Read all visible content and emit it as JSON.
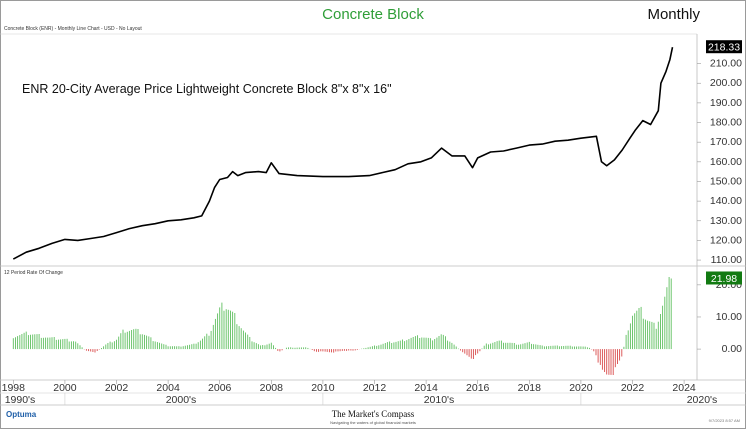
{
  "header": {
    "title": "Concrete Block",
    "period": "Monthly",
    "caption": "Concrete Block (ENR) - Monthly Line Chart - USD - No Layout"
  },
  "footer": {
    "logo": "Optuma",
    "brand": "The Market's Compass",
    "tagline": "Navigating the waters of global financial markets",
    "date": "9/7/2023 8:57 AM"
  },
  "colors": {
    "title": "#2f9e38",
    "positive": "#5fbf5f",
    "negative": "#d94a4a",
    "price_line": "#000000",
    "badge": "#000000",
    "badge_roc": "#127a12"
  },
  "chart_data": [
    {
      "type": "line",
      "title": "ENR 20-City Average Price Lightweight Concrete Block 8\"x 8\"x 16\"",
      "series": [
        {
          "values": [
            [
              1998.0,
              110.5
            ],
            [
              1998.5,
              114
            ],
            [
              1999.0,
              116
            ],
            [
              1999.5,
              118.5
            ],
            [
              2000.0,
              120.5
            ],
            [
              2000.5,
              120
            ],
            [
              2001.0,
              121
            ],
            [
              2001.5,
              122
            ],
            [
              2002.0,
              124
            ],
            [
              2002.5,
              126
            ],
            [
              2003.0,
              127.5
            ],
            [
              2003.5,
              128.5
            ],
            [
              2004.0,
              130
            ],
            [
              2004.5,
              130.5
            ],
            [
              2005.0,
              131.5
            ],
            [
              2005.3,
              132.5
            ],
            [
              2005.6,
              140
            ],
            [
              2005.8,
              147
            ],
            [
              2006.0,
              151
            ],
            [
              2006.3,
              152
            ],
            [
              2006.5,
              155
            ],
            [
              2006.7,
              153
            ],
            [
              2007.0,
              154.5
            ],
            [
              2007.5,
              155
            ],
            [
              2007.8,
              154.5
            ],
            [
              2008.0,
              159.5
            ],
            [
              2008.3,
              154
            ],
            [
              2009.0,
              153
            ],
            [
              2010.0,
              152.5
            ],
            [
              2011.0,
              152.5
            ],
            [
              2011.8,
              153
            ],
            [
              2012.3,
              154.5
            ],
            [
              2012.8,
              156
            ],
            [
              2013.3,
              159
            ],
            [
              2013.8,
              160
            ],
            [
              2014.2,
              162
            ],
            [
              2014.6,
              167
            ],
            [
              2015.0,
              163
            ],
            [
              2015.5,
              163
            ],
            [
              2015.8,
              157
            ],
            [
              2016.0,
              162
            ],
            [
              2016.5,
              165
            ],
            [
              2017.0,
              165.5
            ],
            [
              2017.5,
              167
            ],
            [
              2018.0,
              168.5
            ],
            [
              2018.5,
              169
            ],
            [
              2019.0,
              170.5
            ],
            [
              2019.5,
              171
            ],
            [
              2020.0,
              172
            ],
            [
              2020.6,
              173
            ],
            [
              2020.8,
              160
            ],
            [
              2021.0,
              158
            ],
            [
              2021.3,
              161
            ],
            [
              2021.6,
              166
            ],
            [
              2021.9,
              172
            ],
            [
              2022.1,
              176
            ],
            [
              2022.4,
              181
            ],
            [
              2022.7,
              179
            ],
            [
              2023.0,
              186
            ],
            [
              2023.1,
              200
            ],
            [
              2023.3,
              206
            ],
            [
              2023.45,
              212
            ],
            [
              2023.55,
              218.33
            ]
          ]
        }
      ],
      "last_value": "218.33",
      "ylim": [
        108,
        222
      ],
      "yticks": [
        "110.00",
        "120.00",
        "130.00",
        "140.00",
        "150.00",
        "160.00",
        "170.00",
        "180.00",
        "190.00",
        "200.00",
        "210.00"
      ],
      "xlim": [
        1997.6,
        2024.5
      ]
    },
    {
      "type": "bar",
      "title": "12 Period Rate Of Change",
      "series": [
        {
          "anchors": [
            [
              1998.0,
              4
            ],
            [
              1998.6,
              5
            ],
            [
              1999.4,
              3.5
            ],
            [
              2000.0,
              3
            ],
            [
              2000.4,
              2.5
            ],
            [
              2000.8,
              -0.5
            ],
            [
              2001.2,
              -1
            ],
            [
              2001.6,
              1.5
            ],
            [
              2002.0,
              3
            ],
            [
              2002.3,
              6
            ],
            [
              2002.7,
              6
            ],
            [
              2003.0,
              5
            ],
            [
              2003.4,
              3
            ],
            [
              2003.8,
              1.5
            ],
            [
              2004.0,
              1
            ],
            [
              2004.4,
              0.8
            ],
            [
              2005.0,
              1.5
            ],
            [
              2005.3,
              3
            ],
            [
              2005.6,
              5
            ],
            [
              2005.8,
              9
            ],
            [
              2006.0,
              12
            ],
            [
              2006.2,
              14
            ],
            [
              2006.4,
              12
            ],
            [
              2006.6,
              10
            ],
            [
              2006.9,
              6
            ],
            [
              2007.2,
              3
            ],
            [
              2007.6,
              1
            ],
            [
              2008.0,
              2
            ],
            [
              2008.3,
              -1
            ],
            [
              2008.6,
              0.5
            ],
            [
              2009.0,
              0.5
            ],
            [
              2009.4,
              0.5
            ],
            [
              2009.7,
              -0.8
            ],
            [
              2010.0,
              -0.8
            ],
            [
              2010.4,
              -1
            ],
            [
              2010.8,
              -0.5
            ],
            [
              2011.2,
              -0.5
            ],
            [
              2011.6,
              0.3
            ],
            [
              2012.0,
              1
            ],
            [
              2012.5,
              2
            ],
            [
              2013.0,
              2.5
            ],
            [
              2013.4,
              3.5
            ],
            [
              2013.8,
              4
            ],
            [
              2014.2,
              3
            ],
            [
              2014.6,
              4.5
            ],
            [
              2015.0,
              2
            ],
            [
              2015.4,
              -1
            ],
            [
              2015.8,
              -3
            ],
            [
              2016.0,
              -1.5
            ],
            [
              2016.3,
              1.5
            ],
            [
              2016.8,
              2.5
            ],
            [
              2017.2,
              2
            ],
            [
              2017.6,
              1.5
            ],
            [
              2018.0,
              2
            ],
            [
              2018.5,
              1
            ],
            [
              2019.0,
              1
            ],
            [
              2019.5,
              1
            ],
            [
              2020.0,
              0.8
            ],
            [
              2020.3,
              0.6
            ],
            [
              2020.55,
              -1
            ],
            [
              2020.8,
              -7
            ],
            [
              2021.0,
              -8
            ],
            [
              2021.3,
              -7
            ],
            [
              2021.6,
              -2
            ],
            [
              2021.8,
              6
            ],
            [
              2022.0,
              11
            ],
            [
              2022.3,
              12
            ],
            [
              2022.6,
              9
            ],
            [
              2022.9,
              7
            ],
            [
              2023.1,
              12
            ],
            [
              2023.3,
              17
            ],
            [
              2023.5,
              21.98
            ]
          ]
        }
      ],
      "last_value": "21.98",
      "ylim": [
        -9,
        24
      ],
      "yticks": [
        "0.00",
        "10.00",
        "20.00"
      ],
      "xlim": [
        1997.6,
        2024.5
      ]
    }
  ],
  "xaxis": {
    "years": [
      "1998",
      "2000",
      "2002",
      "2004",
      "2006",
      "2008",
      "2010",
      "2012",
      "2014",
      "2016",
      "2018",
      "2020",
      "2022",
      "2024"
    ],
    "decades": [
      "1990's",
      "2000's",
      "2010's",
      "2020's"
    ]
  }
}
